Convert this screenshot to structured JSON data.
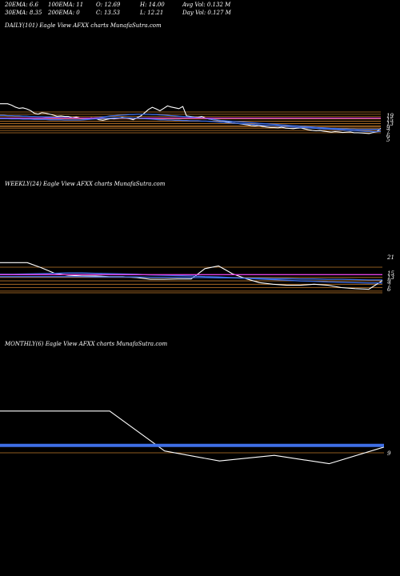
{
  "header": {
    "row1": [
      {
        "name": "ema20",
        "text": "20EMA: 6.6"
      },
      {
        "name": "ema100",
        "text": "100EMA: 11"
      },
      {
        "name": "open",
        "text": "O: 12.69"
      },
      {
        "name": "high",
        "text": "H: 14.00"
      },
      {
        "name": "avg-vol",
        "text": "Avg Vol: 0.132  M"
      }
    ],
    "row2": [
      {
        "name": "ema30",
        "text": "30EMA: 8.35"
      },
      {
        "name": "ema200",
        "text": "200EMA: 0"
      },
      {
        "name": "close",
        "text": "C: 13.53"
      },
      {
        "name": "low",
        "text": "L: 12.21"
      },
      {
        "name": "day-vol",
        "text": "Day Vol: 0.127  M"
      }
    ]
  },
  "panels": {
    "daily": {
      "title": "DAILY(101) Eagle   View  AFXX  charts MunafaSutra.com"
    },
    "weekly": {
      "title": "WEEKLY(24) Eagle   View  AFXX  charts MunafaSutra.com"
    },
    "monthly": {
      "title": "MONTHLY(6) Eagle   View  AFXX  charts MunafaSutra.com"
    }
  },
  "colors": {
    "price": "#ffffff",
    "ema_blue": "#3f6fe6",
    "ema_magenta": "#e040e0",
    "level": "#c27a2a"
  },
  "chart_data": [
    {
      "type": "line",
      "id": "daily",
      "ylim": [
        -10,
        120
      ],
      "tick_labels": [
        "19",
        "15",
        "13",
        "9",
        "7",
        "6",
        "5"
      ],
      "levels": [
        19,
        17,
        15,
        13,
        11,
        9,
        7,
        6,
        5,
        3,
        1
      ],
      "series": [
        {
          "role": "price",
          "values": [
            115,
            115,
            115,
            110,
            103,
            98,
            100,
            96,
            90,
            80,
            77,
            82,
            80,
            77,
            73,
            69,
            70,
            68,
            68,
            64,
            66,
            62,
            62,
            61,
            63,
            61,
            56,
            54,
            57,
            60,
            59,
            61,
            65,
            63,
            60,
            56,
            64,
            70,
            82,
            94,
            102,
            96,
            89,
            98,
            107,
            103,
            100,
            97,
            105,
            70,
            68,
            66,
            65,
            68,
            62,
            58,
            56,
            54,
            52,
            50,
            48,
            45,
            43,
            41,
            39,
            37,
            34,
            33,
            35,
            31,
            29,
            27,
            27,
            26,
            28,
            25,
            24,
            23,
            25,
            26,
            22,
            19,
            17,
            15,
            16,
            14,
            12,
            10,
            12,
            11,
            9,
            10,
            11,
            8,
            8,
            7,
            6,
            5,
            9,
            12,
            24
          ]
        },
        {
          "role": "ema_blue",
          "values": [
            72,
            72,
            71,
            71,
            70,
            70,
            69,
            69,
            68,
            68,
            67,
            67,
            66,
            66,
            65,
            65,
            64,
            64,
            63,
            63,
            62,
            62,
            61,
            61,
            62,
            63,
            64,
            66,
            68,
            70,
            71,
            72,
            73,
            74,
            75,
            75,
            76,
            76,
            76,
            76,
            75,
            75,
            74,
            73,
            72,
            71,
            70,
            69,
            68,
            67,
            66,
            65,
            64,
            63,
            61,
            59,
            57,
            55,
            53,
            52,
            51,
            50,
            49,
            48,
            47,
            46,
            45,
            44,
            43,
            42,
            41,
            40,
            39,
            38,
            37,
            36,
            35,
            34,
            33,
            32,
            31,
            30,
            29,
            28,
            27,
            26,
            25,
            24,
            24,
            23,
            22,
            22,
            21,
            21,
            20,
            20,
            20,
            20,
            20,
            20,
            21
          ]
        },
        {
          "role": "ema_magenta",
          "values": [
            62,
            62,
            62,
            62,
            62,
            62,
            62,
            62,
            62,
            62,
            62,
            62,
            62,
            62,
            62,
            62,
            62,
            62,
            62,
            62,
            62,
            62,
            62,
            62,
            62,
            62,
            62,
            62,
            62,
            62,
            62,
            62,
            62,
            62,
            62,
            62,
            62,
            62,
            62,
            62,
            62,
            62,
            62,
            62,
            62,
            62,
            62,
            62,
            62,
            62,
            62,
            62,
            62,
            62,
            62,
            62,
            62,
            62,
            62,
            62,
            62,
            62,
            62,
            62,
            62,
            62,
            62,
            62,
            62,
            62,
            62,
            62,
            62,
            62,
            62,
            62,
            62,
            62,
            62,
            62,
            62,
            62,
            62,
            62,
            62,
            62,
            62,
            62,
            62,
            62,
            62,
            62,
            62,
            62,
            62,
            62,
            62,
            62,
            62,
            62,
            62
          ]
        },
        {
          "role": "ema_blue",
          "values": [
            60,
            60,
            60,
            59,
            59,
            59,
            58,
            58,
            58,
            57,
            57,
            57,
            57,
            56,
            56,
            56,
            56,
            55,
            55,
            55,
            55,
            55,
            56,
            57,
            58,
            59,
            60,
            61,
            62,
            62,
            63,
            63,
            63,
            63,
            63,
            62,
            62,
            61,
            60,
            59,
            58,
            57,
            56,
            56,
            55,
            55,
            54,
            54,
            53,
            53,
            52,
            52,
            52,
            51,
            51,
            50,
            49,
            48,
            47,
            46,
            45,
            44,
            43,
            42,
            41,
            40,
            39,
            38,
            37,
            36,
            35,
            34,
            34,
            33,
            32,
            31,
            30,
            29,
            28,
            27,
            27,
            26,
            25,
            24,
            23,
            22,
            22,
            21,
            20,
            19,
            18,
            17,
            16,
            15,
            15,
            14,
            13,
            13,
            12,
            12,
            13
          ]
        }
      ]
    },
    {
      "type": "line",
      "id": "weekly",
      "ylim": [
        -5,
        115
      ],
      "tick_labels": [
        "21",
        "15",
        "13",
        "9",
        "7",
        "6"
      ],
      "levels": [
        21,
        15,
        13,
        11,
        9,
        7,
        6
      ],
      "series": [
        {
          "role": "price",
          "values": [
            100,
            100,
            100,
            85,
            68,
            62,
            60,
            60,
            58,
            58,
            55,
            50,
            50,
            51,
            51,
            82,
            90,
            67,
            52,
            40,
            35,
            32,
            32,
            35,
            32,
            25,
            22,
            20,
            46
          ]
        },
        {
          "role": "ema_blue",
          "values": [
            65,
            65,
            66,
            67,
            68,
            69,
            69,
            68,
            67,
            66,
            65,
            63,
            62,
            61,
            60,
            58,
            57,
            55,
            53,
            51,
            49,
            47,
            45,
            44,
            42,
            41,
            40,
            39,
            39
          ]
        },
        {
          "role": "ema_magenta",
          "values": [
            64,
            64,
            64,
            64,
            64,
            64,
            64,
            64,
            64,
            64,
            64,
            64,
            64,
            64,
            64,
            64,
            64,
            64,
            64,
            64,
            64,
            64,
            64,
            64,
            64,
            64,
            64,
            64,
            64
          ]
        },
        {
          "role": "ema_blue",
          "values": [
            58,
            58,
            58,
            58,
            58,
            58,
            58,
            57,
            57,
            57,
            57,
            56,
            56,
            56,
            55,
            55,
            54,
            54,
            53,
            53,
            52,
            52,
            51,
            51,
            50,
            50,
            49,
            48,
            48
          ]
        }
      ]
    },
    {
      "type": "line",
      "id": "monthly",
      "ylim": [
        -10,
        120
      ],
      "tick_labels": [
        "9"
      ],
      "levels": [
        9
      ],
      "series": [
        {
          "role": "price",
          "values": [
            100,
            100,
            100,
            28,
            10,
            20,
            5,
            35
          ]
        },
        {
          "role": "ema_blue",
          "values": [
            39,
            39,
            39,
            39,
            39,
            39,
            39,
            39
          ]
        },
        {
          "role": "ema_blue",
          "values": [
            37,
            37,
            37,
            37,
            37,
            37,
            37,
            37
          ]
        }
      ]
    }
  ]
}
